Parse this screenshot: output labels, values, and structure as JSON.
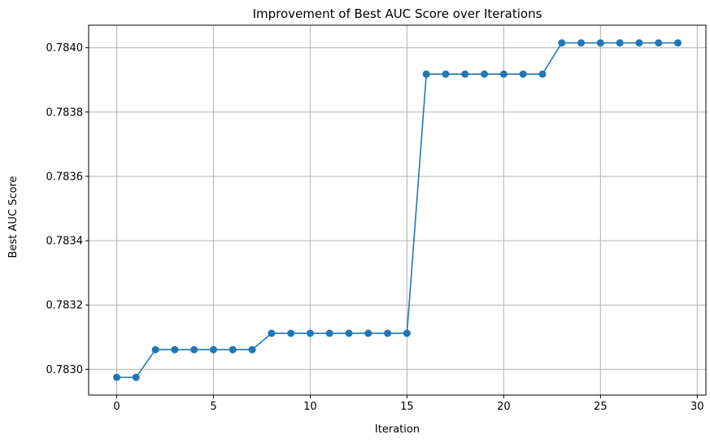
{
  "chart_data": {
    "type": "line",
    "title": "Improvement of Best AUC Score over Iterations",
    "xlabel": "Iteration",
    "ylabel": "Best AUC Score",
    "xlim": [
      -1.45,
      30.45
    ],
    "ylim": [
      0.78292,
      0.78407
    ],
    "xticks": [
      0,
      5,
      10,
      15,
      20,
      25,
      30
    ],
    "xtick_labels": [
      "0",
      "5",
      "10",
      "15",
      "20",
      "25",
      "30"
    ],
    "yticks": [
      0.783,
      0.7832,
      0.7834,
      0.7836,
      0.7838,
      0.784
    ],
    "ytick_labels": [
      "0.7830",
      "0.7832",
      "0.7834",
      "0.7836",
      "0.7838",
      "0.7840"
    ],
    "grid": true,
    "color": "#1f77b4",
    "marker": "circle",
    "series": [
      {
        "x": [
          0,
          1,
          2,
          3,
          4,
          5,
          6,
          7,
          8,
          9,
          10,
          11,
          12,
          13,
          14,
          15,
          16,
          17,
          18,
          19,
          20,
          21,
          22,
          23,
          24,
          25,
          26,
          27,
          28,
          29
        ],
        "values": [
          0.782975,
          0.782975,
          0.783061,
          0.783061,
          0.783061,
          0.783061,
          0.783061,
          0.783061,
          0.783112,
          0.783112,
          0.783112,
          0.783112,
          0.783112,
          0.783112,
          0.783112,
          0.783112,
          0.783918,
          0.783918,
          0.783918,
          0.783918,
          0.783918,
          0.783918,
          0.783918,
          0.784015,
          0.784015,
          0.784015,
          0.784015,
          0.784015,
          0.784015,
          0.784015
        ]
      }
    ]
  }
}
